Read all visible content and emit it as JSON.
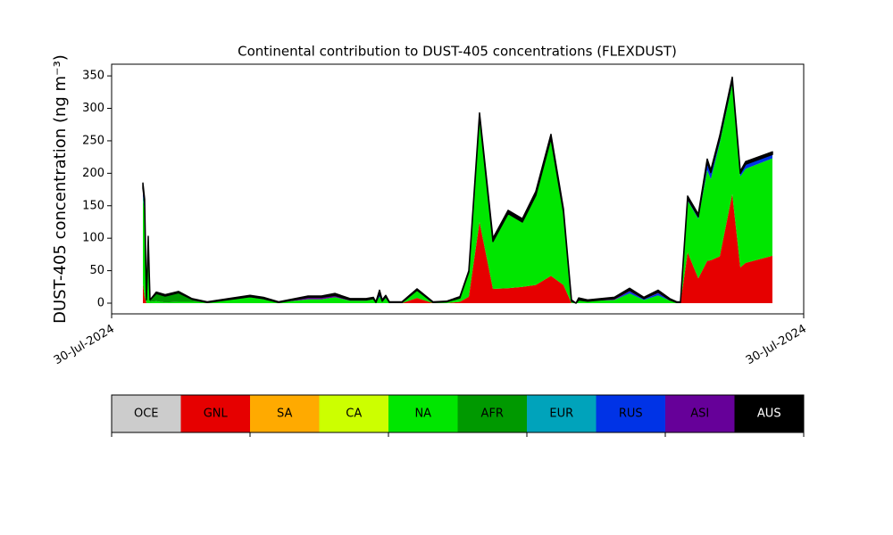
{
  "chart_data": {
    "type": "stacked_area",
    "title": "Continental contribution to DUST-405 concentrations (FLEXDUST)",
    "ylabel": "DUST-405 concentration (ng m⁻³)",
    "x": [
      4.52,
      4.77,
      5.03,
      5.29,
      5.55,
      6.45,
      7.74,
      9.68,
      11.61,
      13.81,
      20,
      21.94,
      24.13,
      28.39,
      30.32,
      32.26,
      34.45,
      36.77,
      37.81,
      38.19,
      38.71,
      39.1,
      39.61,
      40.13,
      40.65,
      41.94,
      44.13,
      46.45,
      48.39,
      50.32,
      51.61,
      53.16,
      55.1,
      57.29,
      59.35,
      61.29,
      63.48,
      65.29,
      66.45,
      67.1,
      67.48,
      68.77,
      72.65,
      74.84,
      76.9,
      78.97,
      80.65,
      81.68,
      82.19,
      83.23,
      84.77,
      86.06,
      86.58,
      87.87,
      89.68,
      90.84,
      91.61,
      95.48
    ],
    "xlim": [
      0,
      100
    ],
    "xticks": [
      {
        "value": 0,
        "label": "30-Jul-2024"
      },
      {
        "value": 100,
        "label": "30-Jul-2024"
      }
    ],
    "ylim": [
      -16.5,
      368
    ],
    "yticks": [
      0,
      50,
      100,
      150,
      200,
      250,
      300,
      350
    ],
    "series": [
      {
        "name": "OCE",
        "color": "#cccccc",
        "values": [
          0,
          0,
          0,
          0,
          0,
          0,
          0,
          0,
          0,
          0,
          0,
          0,
          0,
          0,
          0,
          0,
          0,
          0,
          0,
          0,
          0,
          0,
          0,
          0,
          0,
          0,
          0,
          0,
          0,
          0,
          0,
          0,
          0,
          0,
          0,
          0,
          0,
          0,
          0,
          0,
          0,
          0,
          0,
          0,
          0,
          0,
          0,
          0,
          0,
          0,
          0,
          0,
          0,
          0,
          0,
          0,
          0,
          0
        ]
      },
      {
        "name": "GNL",
        "color": "#e60000",
        "values": [
          30,
          10,
          0,
          0,
          0,
          0,
          0,
          0,
          0,
          0,
          0,
          0,
          0,
          0,
          0,
          0,
          0,
          0,
          0,
          0,
          0,
          0,
          0,
          0,
          0,
          0,
          8,
          0,
          0,
          2,
          10,
          125,
          22,
          23,
          25,
          28,
          42,
          28,
          0,
          0,
          0,
          0,
          0,
          0,
          0,
          0,
          0,
          0,
          0,
          78,
          38,
          65,
          66,
          72,
          168,
          55,
          62,
          73
        ]
      },
      {
        "name": "SA",
        "color": "#ffaa00",
        "values": [
          0,
          0,
          0,
          0,
          0,
          0,
          0,
          0,
          0,
          0,
          0,
          0,
          0,
          0,
          0,
          0,
          0,
          0,
          0,
          0,
          0,
          0,
          0,
          0,
          0,
          0,
          0,
          0,
          0,
          0,
          0,
          0,
          0,
          0,
          0,
          0,
          0,
          0,
          0,
          0,
          0,
          0,
          0,
          0,
          0,
          0,
          0,
          0,
          0,
          0,
          0,
          0,
          0,
          0,
          0,
          0,
          0,
          0
        ]
      },
      {
        "name": "CA",
        "color": "#ccff00",
        "values": [
          0,
          0,
          0,
          0,
          0,
          0,
          0,
          0,
          0,
          0,
          0,
          0,
          0,
          0,
          0,
          0,
          0,
          0,
          0,
          0,
          0,
          0,
          0,
          0,
          0,
          0,
          0,
          0,
          0,
          0,
          0,
          0,
          0,
          0,
          0,
          0,
          0,
          0,
          0,
          0,
          0,
          0,
          0,
          0,
          0,
          0,
          0,
          0,
          0,
          0,
          0,
          0,
          0,
          0,
          0,
          0,
          0,
          0
        ]
      },
      {
        "name": "NA",
        "color": "#00e600",
        "values": [
          135,
          130,
          0,
          90,
          2,
          3,
          1,
          2,
          2,
          1,
          9,
          6,
          1,
          6,
          6,
          9,
          4,
          4,
          6,
          1,
          10,
          3,
          8,
          1,
          1,
          1,
          12,
          1,
          2,
          6,
          38,
          163,
          73,
          115,
          100,
          138,
          212,
          112,
          3,
          0,
          5,
          3,
          5,
          15,
          5,
          12,
          4,
          1,
          1,
          80,
          92,
          140,
          125,
          175,
          170,
          140,
          145,
          150
        ]
      },
      {
        "name": "AFR",
        "color": "#009900",
        "values": [
          0,
          0,
          5,
          5,
          3,
          12,
          10,
          14,
          4,
          0,
          0,
          0,
          0,
          0,
          0,
          0,
          0,
          0,
          0,
          0,
          0,
          0,
          0,
          0,
          0,
          0,
          0,
          0,
          0,
          0,
          0,
          0,
          0,
          0,
          0,
          0,
          0,
          0,
          0,
          0,
          0,
          0,
          0,
          0,
          0,
          0,
          0,
          0,
          0,
          0,
          0,
          0,
          0,
          0,
          0,
          0,
          0,
          0
        ]
      },
      {
        "name": "EUR",
        "color": "#00a3bb",
        "values": [
          0,
          0,
          0,
          0,
          0,
          0,
          0,
          0,
          0,
          0,
          0,
          0,
          0,
          0,
          0,
          0,
          0,
          0,
          0,
          0,
          0,
          0,
          0,
          0,
          0,
          0,
          0,
          0,
          0,
          0,
          0,
          0,
          0,
          0,
          0,
          0,
          0,
          0,
          0,
          0,
          0,
          0,
          0,
          0,
          0,
          0,
          0,
          0,
          0,
          0,
          0,
          0,
          0,
          0,
          0,
          0,
          0,
          0
        ]
      },
      {
        "name": "RUS",
        "color": "#0033e6",
        "values": [
          12,
          15,
          0,
          0,
          0,
          0,
          0,
          0,
          0,
          0,
          0,
          0,
          0,
          0,
          0,
          0,
          0,
          0,
          0,
          0,
          5,
          0,
          2,
          0,
          0,
          0,
          0,
          0,
          0,
          0,
          0,
          0,
          0,
          0,
          0,
          0,
          0,
          0,
          0,
          0,
          0,
          0,
          0,
          3,
          1,
          3,
          0,
          0,
          0,
          3,
          3,
          12,
          10,
          6,
          5,
          5,
          7,
          6
        ]
      },
      {
        "name": "ASI",
        "color": "#660099",
        "values": [
          0,
          0,
          0,
          0,
          0,
          0,
          0,
          0,
          0,
          0,
          1,
          1,
          0,
          3,
          3,
          3,
          1,
          1,
          1,
          0,
          0,
          0,
          0,
          0,
          0,
          0,
          0,
          0,
          0,
          0,
          0,
          0,
          0,
          0,
          0,
          0,
          0,
          0,
          0,
          0,
          0,
          0,
          2,
          2,
          1,
          2,
          1,
          0,
          0,
          0,
          0,
          0,
          0,
          0,
          0,
          0,
          0,
          0
        ]
      },
      {
        "name": "AUS",
        "color": "#000000",
        "values": [
          8,
          5,
          0,
          8,
          0,
          2,
          2,
          2,
          1,
          1,
          2,
          2,
          1,
          2,
          2,
          3,
          2,
          2,
          2,
          1,
          5,
          2,
          2,
          1,
          1,
          1,
          2,
          1,
          1,
          2,
          2,
          5,
          5,
          5,
          5,
          6,
          6,
          5,
          2,
          0,
          3,
          2,
          2,
          3,
          2,
          3,
          2,
          1,
          1,
          4,
          4,
          5,
          4,
          5,
          5,
          3,
          4,
          4
        ]
      }
    ]
  }
}
